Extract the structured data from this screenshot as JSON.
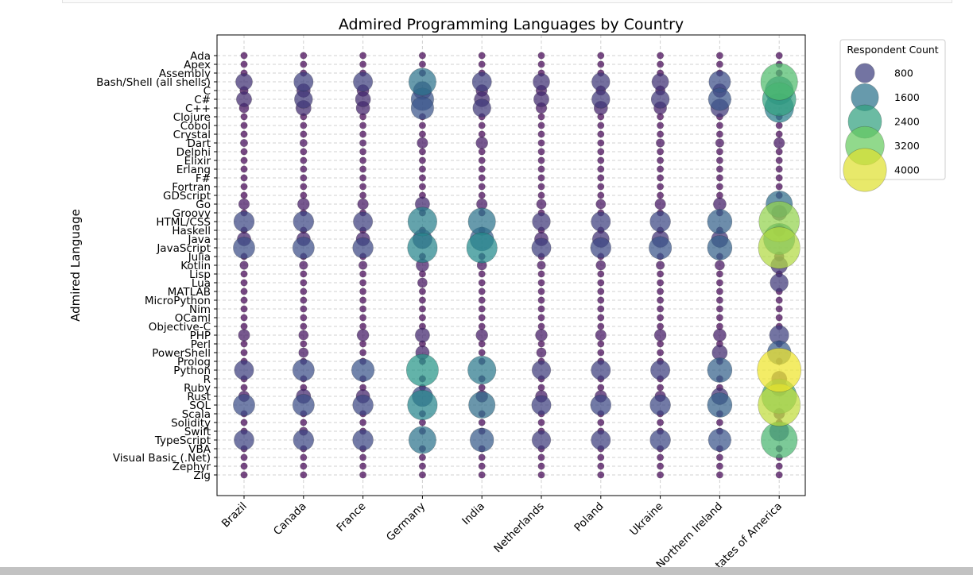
{
  "chart_data": {
    "type": "scatter",
    "title": "Admired Programming Languages by Country",
    "xlabel": "",
    "ylabel": "Admired Language",
    "grid": true,
    "x_categories": [
      "Brazil",
      "Canada",
      "France",
      "Germany",
      "India",
      "Netherlands",
      "Poland",
      "Ukraine",
      "United Kingdom of Great Britain and Northern Ireland",
      "United States of America"
    ],
    "x_tick_labels_visible": [
      "Brazil",
      "Canada",
      "France",
      "Germany",
      "India",
      "Netherlands",
      "Poland",
      "Ukraine",
      "Northern Ireland",
      "tates of America"
    ],
    "y_categories": [
      "Ada",
      "Apex",
      "Assembly",
      "Bash/Shell (all shells)",
      "C",
      "C#",
      "C++",
      "Clojure",
      "Cobol",
      "Crystal",
      "Dart",
      "Delphi",
      "Elixir",
      "Erlang",
      "F#",
      "Fortran",
      "GDScript",
      "Go",
      "Groovy",
      "HTML/CSS",
      "Haskell",
      "Java",
      "JavaScript",
      "Julia",
      "Kotlin",
      "Lisp",
      "Lua",
      "MATLAB",
      "MicroPython",
      "Nim",
      "OCaml",
      "Objective-C",
      "PHP",
      "Perl",
      "PowerShell",
      "Prolog",
      "Python",
      "R",
      "Ruby",
      "Rust",
      "SQL",
      "Scala",
      "Solidity",
      "Swift",
      "TypeScript",
      "VBA",
      "Visual Basic (.Net)",
      "Zephyr",
      "Zig"
    ],
    "size_legend": {
      "title": "Respondent Count",
      "entries": [
        800,
        1600,
        2400,
        3200,
        4000
      ],
      "placement": "outside-right"
    },
    "colormap": "viridis",
    "color_range": [
      0,
      4200
    ],
    "series": [
      {
        "country": "Brazil",
        "values": {
          "Bash/Shell (all shells)": 600,
          "C": 150,
          "C#": 500,
          "C++": 200,
          "Dart": 120,
          "Go": 250,
          "HTML/CSS": 900,
          "Java": 400,
          "JavaScript": 1000,
          "Kotlin": 150,
          "PHP": 280,
          "Python": 800,
          "Rust": 250,
          "SQL": 1000,
          "TypeScript": 850
        }
      },
      {
        "country": "Canada",
        "values": {
          "Bash/Shell (all shells)": 800,
          "C": 400,
          "C#": 700,
          "C++": 500,
          "Dart": 120,
          "Go": 300,
          "HTML/CSS": 900,
          "Java": 400,
          "JavaScript": 1000,
          "Kotlin": 150,
          "PHP": 200,
          "PowerShell": 200,
          "Python": 1000,
          "Rust": 450,
          "SQL": 1000,
          "Swift": 150,
          "TypeScript": 900
        }
      },
      {
        "country": "France",
        "values": {
          "Bash/Shell (all shells)": 800,
          "C": 300,
          "C#": 500,
          "C++": 400,
          "Dart": 100,
          "Go": 250,
          "HTML/CSS": 800,
          "Java": 400,
          "JavaScript": 900,
          "Kotlin": 150,
          "PHP": 300,
          "Python": 1100,
          "Rust": 400,
          "SQL": 900,
          "TypeScript": 900
        }
      },
      {
        "country": "Germany",
        "values": {
          "Bash/Shell (all shells)": 1600,
          "C": 700,
          "C#": 1100,
          "C++": 1100,
          "Dart": 250,
          "Go": 450,
          "HTML/CSS": 1800,
          "Java": 800,
          "JavaScript": 1900,
          "Kotlin": 350,
          "Lua": 200,
          "PHP": 450,
          "PowerShell": 400,
          "Python": 2200,
          "Rust": 900,
          "SQL": 1900,
          "TypeScript": 1600
        }
      },
      {
        "country": "India",
        "values": {
          "Bash/Shell (all shells)": 800,
          "C": 300,
          "C#": 500,
          "C++": 700,
          "Dart": 300,
          "Go": 250,
          "HTML/CSS": 1600,
          "Java": 1200,
          "JavaScript": 2000,
          "Kotlin": 200,
          "PHP": 300,
          "Python": 1700,
          "Rust": 300,
          "SQL": 1500,
          "TypeScript": 1200
        }
      },
      {
        "country": "Netherlands",
        "values": {
          "Bash/Shell (all shells)": 600,
          "C": 250,
          "C#": 500,
          "C++": 250,
          "Go": 200,
          "HTML/CSS": 700,
          "Java": 400,
          "JavaScript": 800,
          "Kotlin": 150,
          "PHP": 300,
          "PowerShell": 200,
          "Python": 750,
          "Rust": 300,
          "SQL": 800,
          "TypeScript": 750
        }
      },
      {
        "country": "Poland",
        "values": {
          "Bash/Shell (all shells)": 700,
          "C": 200,
          "C#": 700,
          "C++": 400,
          "Go": 200,
          "HTML/CSS": 800,
          "Java": 600,
          "JavaScript": 900,
          "Kotlin": 200,
          "PHP": 250,
          "Python": 800,
          "Rust": 300,
          "SQL": 900,
          "TypeScript": 800
        }
      },
      {
        "country": "Ukraine",
        "values": {
          "Bash/Shell (all shells)": 600,
          "C": 200,
          "C#": 700,
          "C++": 350,
          "Dart": 150,
          "Go": 250,
          "HTML/CSS": 900,
          "Java": 600,
          "JavaScript": 1100,
          "Kotlin": 150,
          "PHP": 300,
          "Python": 800,
          "Rust": 250,
          "SQL": 900,
          "TypeScript": 900
        }
      },
      {
        "country": "United Kingdom of Great Britain and Northern Ireland",
        "values": {
          "Bash/Shell (all shells)": 1000,
          "C": 400,
          "C#": 1100,
          "C++": 700,
          "Dart": 150,
          "Go": 350,
          "HTML/CSS": 1300,
          "Java": 600,
          "JavaScript": 1300,
          "Kotlin": 200,
          "PHP": 350,
          "PowerShell": 500,
          "Python": 1300,
          "Rust": 600,
          "SQL": 1300,
          "TypeScript": 1100
        }
      },
      {
        "country": "United States of America",
        "values": {
          "Bash/Shell (all shells)": 2900,
          "C": 1700,
          "C#": 2400,
          "C++": 1800,
          "Dart": 250,
          "Go": 1500,
          "Groovy": 500,
          "HTML/CSS": 3500,
          "Haskell": 300,
          "Java": 2100,
          "JavaScript": 3700,
          "Julia": 200,
          "Kotlin": 600,
          "Lua": 700,
          "PHP": 800,
          "PowerShell": 1200,
          "Python": 4100,
          "R": 500,
          "Ruby": 600,
          "Rust": 2600,
          "SQL": 3800,
          "Scala": 250,
          "Swift": 800,
          "TypeScript": 2800
        }
      }
    ]
  }
}
